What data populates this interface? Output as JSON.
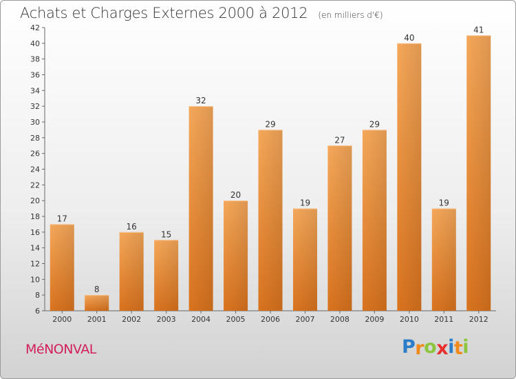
{
  "title": "Achats et Charges Externes 2000 à 2012",
  "unit_note": "(en milliers d'€)",
  "commune": "MéNONVAL",
  "logo": {
    "letters": [
      "P",
      "r",
      "o",
      "x",
      "i",
      "t",
      "i"
    ],
    "colors": [
      "#2b7cc9",
      "#f08a1c",
      "#8cc63f",
      "#e8302e",
      "#2b7cc9",
      "#f08a1c",
      "#8cc63f"
    ]
  },
  "colors": {
    "bar": "#ef8e35",
    "bar_light": "#f5a85a",
    "bar_dark": "#d9731e",
    "title": "#333333",
    "commune": "#d21f5a"
  },
  "chart_data": {
    "type": "bar",
    "categories": [
      "2000",
      "2001",
      "2002",
      "2003",
      "2004",
      "2005",
      "2006",
      "2007",
      "2008",
      "2009",
      "2010",
      "2011",
      "2012"
    ],
    "values": [
      17,
      8,
      16,
      15,
      32,
      20,
      29,
      19,
      27,
      29,
      40,
      19,
      41
    ],
    "title": "Achats et Charges Externes 2000 à 2012",
    "xlabel": "",
    "ylabel": "",
    "ylim": [
      6,
      42
    ],
    "yticks": [
      6,
      8,
      10,
      12,
      14,
      16,
      18,
      20,
      22,
      24,
      26,
      28,
      30,
      32,
      34,
      36,
      38,
      40,
      42
    ],
    "grid": false,
    "data_labels": true
  }
}
